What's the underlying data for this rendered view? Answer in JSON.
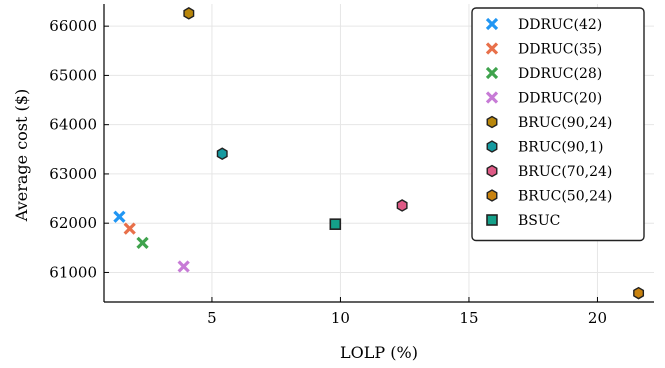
{
  "chart_data": {
    "type": "scatter",
    "xlabel": "LOLP (%)",
    "ylabel": "Average cost ($)",
    "xlim": [
      0.8,
      22.2
    ],
    "ylim": [
      60400,
      66450
    ],
    "xticks": [
      5,
      10,
      15,
      20
    ],
    "yticks": [
      61000,
      62000,
      63000,
      64000,
      65000,
      66000
    ],
    "grid": true,
    "legend_position": "top-right",
    "series": [
      {
        "name": "DDRUC(42)",
        "marker": "x",
        "color": "#2196f3",
        "points": [
          {
            "x": 1.4,
            "y": 62130
          }
        ]
      },
      {
        "name": "DDRUC(35)",
        "marker": "x",
        "color": "#e8704a",
        "points": [
          {
            "x": 1.8,
            "y": 61890
          }
        ]
      },
      {
        "name": "DDRUC(28)",
        "marker": "x",
        "color": "#3fa34d",
        "points": [
          {
            "x": 2.3,
            "y": 61600
          }
        ]
      },
      {
        "name": "DDRUC(20)",
        "marker": "x",
        "color": "#c77bd6",
        "points": [
          {
            "x": 3.9,
            "y": 61120
          }
        ]
      },
      {
        "name": "BRUC(90,24)",
        "marker": "hexagon",
        "color": "#b8860b",
        "points": [
          {
            "x": 4.1,
            "y": 66260
          }
        ]
      },
      {
        "name": "BRUC(90,1)",
        "marker": "hexagon",
        "color": "#159aa0",
        "points": [
          {
            "x": 5.4,
            "y": 63410
          }
        ]
      },
      {
        "name": "BRUC(70,24)",
        "marker": "hexagon",
        "color": "#de5a86",
        "points": [
          {
            "x": 12.4,
            "y": 62360
          }
        ]
      },
      {
        "name": "BRUC(50,24)",
        "marker": "hexagon",
        "color": "#c8820f",
        "points": [
          {
            "x": 21.6,
            "y": 60580
          }
        ]
      },
      {
        "name": "BSUC",
        "marker": "square",
        "color": "#14a089",
        "points": [
          {
            "x": 9.8,
            "y": 61980
          }
        ]
      }
    ]
  }
}
